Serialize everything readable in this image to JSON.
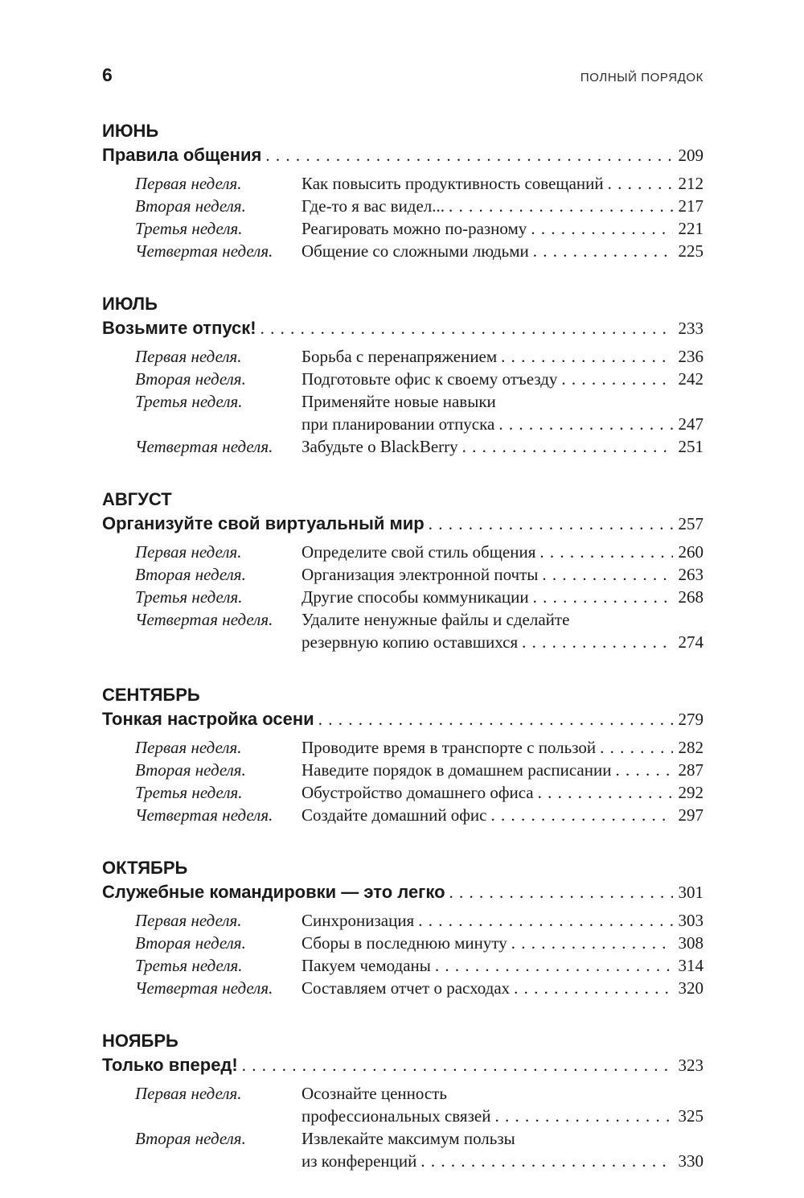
{
  "page": {
    "folio": "6",
    "running_title": "ПОЛНЫЙ ПОРЯДОК"
  },
  "sections": [
    {
      "month": "ИЮНЬ",
      "title": "Правила общения",
      "page": "209",
      "weeks": [
        {
          "label": "Первая неделя.",
          "lines": [
            "Как повысить продуктивность совещаний"
          ],
          "page": "212"
        },
        {
          "label": "Вторая неделя.",
          "lines": [
            "Где-то я вас видел..."
          ],
          "page": "217"
        },
        {
          "label": "Третья неделя.",
          "lines": [
            "Реагировать можно по-разному"
          ],
          "page": "221"
        },
        {
          "label": "Четвертая неделя.",
          "lines": [
            "Общение со сложными людьми"
          ],
          "page": "225"
        }
      ]
    },
    {
      "month": "ИЮЛЬ",
      "title": "Возьмите отпуск!",
      "page": "233",
      "weeks": [
        {
          "label": "Первая неделя.",
          "lines": [
            "Борьба с перенапряжением"
          ],
          "page": "236"
        },
        {
          "label": "Вторая неделя.",
          "lines": [
            "Подготовьте офис к своему отъезду"
          ],
          "page": "242"
        },
        {
          "label": "Третья неделя.",
          "lines": [
            "Применяйте новые навыки",
            "при планировании отпуска"
          ],
          "page": "247"
        },
        {
          "label": "Четвертая неделя.",
          "lines": [
            "Забудьте о BlackBerry"
          ],
          "page": "251"
        }
      ]
    },
    {
      "month": "АВГУСТ",
      "title": "Организуйте свой виртуальный мир",
      "page": "257",
      "weeks": [
        {
          "label": "Первая неделя.",
          "lines": [
            "Определите свой стиль общения"
          ],
          "page": "260"
        },
        {
          "label": "Вторая неделя.",
          "lines": [
            "Организация электронной почты"
          ],
          "page": "263"
        },
        {
          "label": "Третья неделя.",
          "lines": [
            "Другие способы коммуникации"
          ],
          "page": "268"
        },
        {
          "label": "Четвертая неделя.",
          "lines": [
            "Удалите ненужные файлы и сделайте",
            "резервную копию оставшихся"
          ],
          "page": "274"
        }
      ]
    },
    {
      "month": "СЕНТЯБРЬ",
      "title": "Тонкая настройка осени",
      "page": "279",
      "weeks": [
        {
          "label": "Первая неделя.",
          "lines": [
            "Проводите время в транспорте с пользой"
          ],
          "page": "282"
        },
        {
          "label": "Вторая неделя.",
          "lines": [
            "Наведите порядок в домашнем расписании"
          ],
          "page": "287"
        },
        {
          "label": "Третья неделя.",
          "lines": [
            "Обустройство домашнего офиса"
          ],
          "page": "292"
        },
        {
          "label": "Четвертая неделя.",
          "lines": [
            "Создайте домашний офис"
          ],
          "page": "297"
        }
      ]
    },
    {
      "month": "ОКТЯБРЬ",
      "title": "Служебные командировки — это легко",
      "page": "301",
      "weeks": [
        {
          "label": "Первая неделя.",
          "lines": [
            "Синхронизация"
          ],
          "page": "303"
        },
        {
          "label": "Вторая неделя.",
          "lines": [
            "Сборы в последнюю минуту"
          ],
          "page": "308"
        },
        {
          "label": "Третья неделя.",
          "lines": [
            "Пакуем чемоданы"
          ],
          "page": "314"
        },
        {
          "label": "Четвертая неделя.",
          "lines": [
            "Составляем отчет о расходах"
          ],
          "page": "320"
        }
      ]
    },
    {
      "month": "НОЯБРЬ",
      "title": "Только вперед!",
      "page": "323",
      "weeks": [
        {
          "label": "Первая неделя.",
          "lines": [
            "Осознайте ценность",
            "профессиональных связей"
          ],
          "page": "325"
        },
        {
          "label": "Вторая неделя.",
          "lines": [
            "Извлекайте максимум пользы",
            "из конференций"
          ],
          "page": "330"
        }
      ]
    }
  ]
}
